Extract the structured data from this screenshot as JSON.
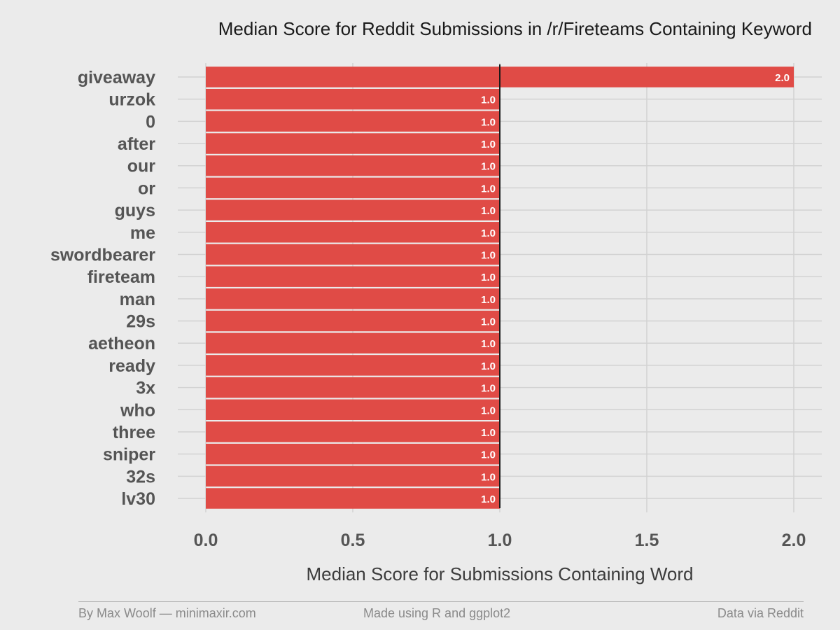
{
  "chart_data": {
    "type": "bar",
    "orientation": "horizontal",
    "title": "Median Score for Reddit Submissions in /r/Fireteams Containing Keyword",
    "xlabel": "Median Score for Submissions Containing Word",
    "ylabel": "",
    "categories": [
      "giveaway",
      "urzok",
      "0",
      "after",
      "our",
      "or",
      "guys",
      "me",
      "swordbearer",
      "fireteam",
      "man",
      "29s",
      "aetheon",
      "ready",
      "3x",
      "who",
      "three",
      "sniper",
      "32s",
      "lv30"
    ],
    "values": [
      2.0,
      1.0,
      1.0,
      1.0,
      1.0,
      1.0,
      1.0,
      1.0,
      1.0,
      1.0,
      1.0,
      1.0,
      1.0,
      1.0,
      1.0,
      1.0,
      1.0,
      1.0,
      1.0,
      1.0
    ],
    "data_labels": [
      "2.0",
      "1.0",
      "1.0",
      "1.0",
      "1.0",
      "1.0",
      "1.0",
      "1.0",
      "1.0",
      "1.0",
      "1.0",
      "1.0",
      "1.0",
      "1.0",
      "1.0",
      "1.0",
      "1.0",
      "1.0",
      "1.0",
      "1.0"
    ],
    "xlim": [
      0,
      2.0
    ],
    "x_ticks": [
      "0.0",
      "0.5",
      "1.0",
      "1.5",
      "2.0"
    ],
    "reference_line": 1.0,
    "grid": true,
    "colors": {
      "bar": "#e04b46",
      "background": "#ebebeb",
      "grid": "#d2d2d2",
      "reference_line": "#1a1a1a",
      "label_text": "#ffffff"
    }
  },
  "footer": {
    "left": "By Max Woolf — minimaxir.com",
    "center": "Made using R and ggplot2",
    "right": "Data via Reddit"
  }
}
